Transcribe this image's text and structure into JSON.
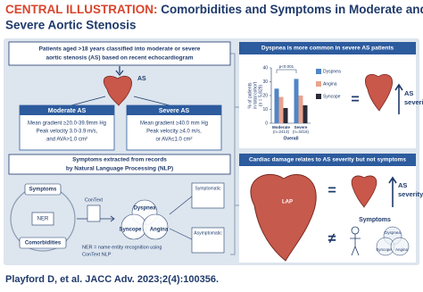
{
  "header": {
    "label": "CENTRAL ILLUSTRATION:",
    "title_lines": [
      "Comorbidities and Symptoms in Moderate and",
      "Severe Aortic Stenosis"
    ]
  },
  "cohort": {
    "lines": [
      "Patients aged >18 years classified into moderate or severe",
      "aortic stenosis (AS) based on recent echocardiogram"
    ],
    "heart_label": "AS"
  },
  "moderate": {
    "title": "Moderate AS",
    "lines": [
      "Mean gradient ≥20.0-39.9mm Hg",
      "Peak velocity 3.0-3.9 m/s,",
      "and AVA>1.0 cm²"
    ]
  },
  "severe": {
    "title": "Severe AS",
    "lines": [
      "Mean gradient ≥40.0 mm Hg",
      "Peak velocity ≥4.0 m/s,",
      "or AVA≤1.0 cm²"
    ]
  },
  "nlp": {
    "title_lines": [
      "Symptoms extracted from records",
      "by Natural Language Processing (NLP)"
    ],
    "nodes": {
      "symptoms": "Symptoms",
      "ner": "NER",
      "comorbidities": "Comorbidities",
      "context": "ConText",
      "dyspnea": "Dyspnea",
      "syncope": "Syncope",
      "angina": "Angina",
      "symptomatic": "Symptomatic",
      "asymptomatic": "Asymptomatic"
    },
    "note_lines": [
      "NER = name entity recognition using",
      "ConText NLP"
    ]
  },
  "chart_data": {
    "type": "bar",
    "title": "Dyspnea is more common in severe AS patients",
    "y_label_lines": [
      "% of patients",
      "in total cohort",
      "(n = 5,829)"
    ],
    "x_label": "Overall",
    "categories": [
      "Moderate",
      "Severe"
    ],
    "category_counts": [
      "(n=2413)",
      "(n=3416)"
    ],
    "series": [
      {
        "name": "Dyspnea",
        "color": "#4f86c6",
        "values": [
          25,
          32
        ]
      },
      {
        "name": "Angina",
        "color": "#e9a38e",
        "values": [
          19,
          20
        ]
      },
      {
        "name": "Syncope",
        "color": "#2b2b38",
        "values": [
          11,
          13
        ]
      }
    ],
    "ylim": [
      0,
      40
    ],
    "yticks": [
      0,
      10,
      20,
      30,
      40
    ],
    "annotation": "p<0.001",
    "equals": "=",
    "severity_lines": [
      "AS",
      "severity"
    ]
  },
  "damage": {
    "title": "Cardiac damage relates to AS severity but not symptoms",
    "lap": "LAP",
    "equals": "=",
    "severity_lines": [
      "AS",
      "severity"
    ],
    "not_equal": "≠",
    "symptoms": "Symptoms",
    "venn": [
      "Dyspnea",
      "Syncope",
      "Angina"
    ]
  },
  "footer": "Playford D, et al. JACC Adv. 2023;2(4):100356."
}
